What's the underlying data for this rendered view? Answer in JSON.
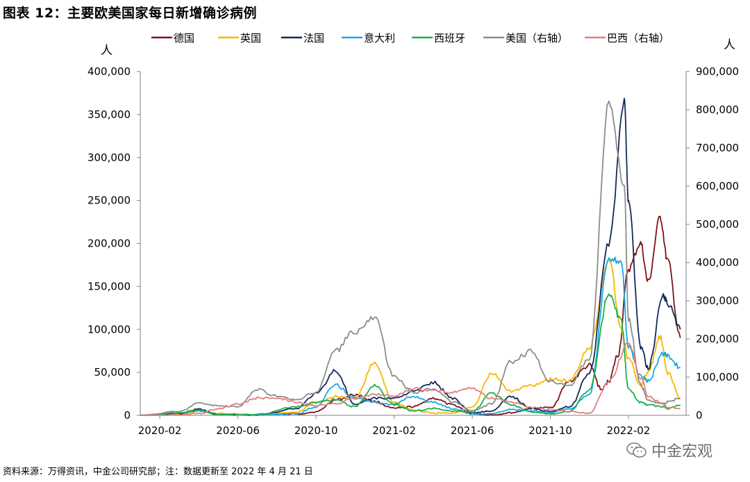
{
  "title": "图表 12：主要欧美国家每日新增确诊病例",
  "source": "资料来源：万得资讯，中金公司研究部；注：数据更新至 2022 年 4 月 21 日",
  "watermark": "中金宏观",
  "chart_data": {
    "type": "line",
    "title": "图表 12：主要欧美国家每日新增确诊病例",
    "left_axis": {
      "label": "人",
      "min": 0,
      "max": 400000,
      "ticks": [
        "0",
        "50,000",
        "100,000",
        "150,000",
        "200,000",
        "250,000",
        "300,000",
        "350,000",
        "400,000"
      ]
    },
    "right_axis": {
      "label": "人",
      "min": 0,
      "max": 900000,
      "ticks": [
        "0",
        "100,000",
        "200,000",
        "300,000",
        "400,000",
        "500,000",
        "600,000",
        "700,000",
        "800,000",
        "900,000"
      ]
    },
    "x_ticks": [
      "2020-02",
      "2020-06",
      "2020-10",
      "2021-02",
      "2021-06",
      "2021-10",
      "2022-02"
    ],
    "x_range": [
      "2020-01",
      "2022-04"
    ],
    "legend_position": "top",
    "series": [
      {
        "name": "德国",
        "axis": "left",
        "color": "#7b1418",
        "points": [
          [
            "2020-01",
            0
          ],
          [
            "2020-03",
            1000
          ],
          [
            "2020-04",
            5000
          ],
          [
            "2020-05",
            1000
          ],
          [
            "2020-07",
            500
          ],
          [
            "2020-09",
            1500
          ],
          [
            "2020-10",
            4000
          ],
          [
            "2020-11",
            18000
          ],
          [
            "2020-12",
            24000
          ],
          [
            "2021-01",
            16000
          ],
          [
            "2021-02",
            8000
          ],
          [
            "2021-03",
            10000
          ],
          [
            "2021-04",
            20000
          ],
          [
            "2021-05",
            12000
          ],
          [
            "2021-06",
            2000
          ],
          [
            "2021-07",
            500
          ],
          [
            "2021-08",
            3000
          ],
          [
            "2021-09",
            8000
          ],
          [
            "2021-10",
            9000
          ],
          [
            "2021-11",
            40000
          ],
          [
            "2021-12",
            58000
          ],
          [
            "2021-12-20",
            30000
          ],
          [
            "2022-01",
            40000
          ],
          [
            "2022-01-15",
            70000
          ],
          [
            "2022-02",
            170000
          ],
          [
            "2022-02-20",
            200000
          ],
          [
            "2022-03",
            155000
          ],
          [
            "2022-03-20",
            230000
          ],
          [
            "2022-04",
            180000
          ],
          [
            "2022-04-21",
            90000
          ]
        ]
      },
      {
        "name": "英国",
        "axis": "left",
        "color": "#f5b800",
        "points": [
          [
            "2020-01",
            0
          ],
          [
            "2020-03",
            1000
          ],
          [
            "2020-04",
            5000
          ],
          [
            "2020-05",
            2000
          ],
          [
            "2020-07",
            600
          ],
          [
            "2020-09",
            3500
          ],
          [
            "2020-10",
            15000
          ],
          [
            "2020-11",
            22000
          ],
          [
            "2020-12",
            20000
          ],
          [
            "2021-01",
            60000
          ],
          [
            "2021-02",
            15000
          ],
          [
            "2021-03",
            6000
          ],
          [
            "2021-04",
            2500
          ],
          [
            "2021-05",
            2500
          ],
          [
            "2021-06",
            10000
          ],
          [
            "2021-07",
            48000
          ],
          [
            "2021-08",
            28000
          ],
          [
            "2021-09",
            35000
          ],
          [
            "2021-10",
            42000
          ],
          [
            "2021-11",
            40000
          ],
          [
            "2021-12",
            80000
          ],
          [
            "2022-01",
            183000
          ],
          [
            "2022-01-20",
            100000
          ],
          [
            "2022-02",
            65000
          ],
          [
            "2022-02-20",
            35000
          ],
          [
            "2022-03",
            50000
          ],
          [
            "2022-03-20",
            90000
          ],
          [
            "2022-04",
            50000
          ],
          [
            "2022-04-21",
            20000
          ]
        ]
      },
      {
        "name": "法国",
        "axis": "left",
        "color": "#14285a",
        "points": [
          [
            "2020-01",
            0
          ],
          [
            "2020-03",
            2000
          ],
          [
            "2020-04",
            7000
          ],
          [
            "2020-05",
            1000
          ],
          [
            "2020-07",
            500
          ],
          [
            "2020-09",
            8000
          ],
          [
            "2020-10",
            25000
          ],
          [
            "2020-11",
            52000
          ],
          [
            "2020-12",
            12000
          ],
          [
            "2021-01",
            20000
          ],
          [
            "2021-02",
            20000
          ],
          [
            "2021-03",
            28000
          ],
          [
            "2021-04",
            38000
          ],
          [
            "2021-05",
            20000
          ],
          [
            "2021-06",
            3000
          ],
          [
            "2021-07",
            5000
          ],
          [
            "2021-08",
            22000
          ],
          [
            "2021-09",
            8000
          ],
          [
            "2021-10",
            5000
          ],
          [
            "2021-11",
            10000
          ],
          [
            "2021-12",
            50000
          ],
          [
            "2022-01",
            200000
          ],
          [
            "2022-01-25",
            365000
          ],
          [
            "2022-02",
            250000
          ],
          [
            "2022-02-20",
            80000
          ],
          [
            "2022-03",
            55000
          ],
          [
            "2022-03-25",
            140000
          ],
          [
            "2022-04",
            130000
          ],
          [
            "2022-04-21",
            100000
          ]
        ]
      },
      {
        "name": "意大利",
        "axis": "left",
        "color": "#1aa7e6",
        "points": [
          [
            "2020-01",
            0
          ],
          [
            "2020-03",
            3000
          ],
          [
            "2020-04",
            5000
          ],
          [
            "2020-05",
            1000
          ],
          [
            "2020-07",
            300
          ],
          [
            "2020-09",
            1500
          ],
          [
            "2020-10",
            10000
          ],
          [
            "2020-11",
            35000
          ],
          [
            "2020-12",
            20000
          ],
          [
            "2021-01",
            15000
          ],
          [
            "2021-02",
            13000
          ],
          [
            "2021-03",
            22000
          ],
          [
            "2021-04",
            15000
          ],
          [
            "2021-05",
            8000
          ],
          [
            "2021-06",
            1500
          ],
          [
            "2021-07",
            2000
          ],
          [
            "2021-08",
            7000
          ],
          [
            "2021-09",
            5000
          ],
          [
            "2021-10",
            3000
          ],
          [
            "2021-11",
            8000
          ],
          [
            "2021-12",
            25000
          ],
          [
            "2022-01",
            180000
          ],
          [
            "2022-01-20",
            180000
          ],
          [
            "2022-02",
            80000
          ],
          [
            "2022-02-20",
            45000
          ],
          [
            "2022-03",
            40000
          ],
          [
            "2022-03-25",
            72000
          ],
          [
            "2022-04",
            70000
          ],
          [
            "2022-04-21",
            55000
          ]
        ]
      },
      {
        "name": "西班牙",
        "axis": "left",
        "color": "#1fae4a",
        "points": [
          [
            "2020-01",
            0
          ],
          [
            "2020-03",
            3000
          ],
          [
            "2020-04",
            6000
          ],
          [
            "2020-05",
            500
          ],
          [
            "2020-07",
            1000
          ],
          [
            "2020-09",
            10000
          ],
          [
            "2020-10",
            15000
          ],
          [
            "2020-11",
            18000
          ],
          [
            "2020-12",
            10000
          ],
          [
            "2021-01",
            35000
          ],
          [
            "2021-02",
            12000
          ],
          [
            "2021-03",
            5000
          ],
          [
            "2021-04",
            8000
          ],
          [
            "2021-05",
            5000
          ],
          [
            "2021-06",
            4000
          ],
          [
            "2021-07",
            26000
          ],
          [
            "2021-08",
            12000
          ],
          [
            "2021-09",
            4000
          ],
          [
            "2021-10",
            2000
          ],
          [
            "2021-11",
            5000
          ],
          [
            "2021-12",
            30000
          ],
          [
            "2022-01",
            140000
          ],
          [
            "2022-01-20",
            110000
          ],
          [
            "2022-02",
            30000
          ],
          [
            "2022-02-20",
            15000
          ],
          [
            "2022-03",
            12000
          ],
          [
            "2022-03-25",
            10000
          ],
          [
            "2022-04",
            8000
          ],
          [
            "2022-04-21",
            12000
          ]
        ]
      },
      {
        "name": "美国（右轴）",
        "axis": "right",
        "color": "#8c8c8c",
        "points": [
          [
            "2020-01",
            0
          ],
          [
            "2020-03",
            10000
          ],
          [
            "2020-04",
            32000
          ],
          [
            "2020-05",
            25000
          ],
          [
            "2020-06",
            22000
          ],
          [
            "2020-07",
            68000
          ],
          [
            "2020-08",
            50000
          ],
          [
            "2020-09",
            40000
          ],
          [
            "2020-10",
            60000
          ],
          [
            "2020-11",
            170000
          ],
          [
            "2020-12",
            220000
          ],
          [
            "2021-01",
            255000
          ],
          [
            "2021-02",
            100000
          ],
          [
            "2021-03",
            60000
          ],
          [
            "2021-04",
            70000
          ],
          [
            "2021-05",
            35000
          ],
          [
            "2021-06",
            12000
          ],
          [
            "2021-07",
            30000
          ],
          [
            "2021-08",
            140000
          ],
          [
            "2021-09",
            165000
          ],
          [
            "2021-10",
            90000
          ],
          [
            "2021-11",
            80000
          ],
          [
            "2021-12",
            150000
          ],
          [
            "2022-01",
            820000
          ],
          [
            "2022-01-25",
            600000
          ],
          [
            "2022-02",
            250000
          ],
          [
            "2022-02-20",
            80000
          ],
          [
            "2022-03",
            40000
          ],
          [
            "2022-03-25",
            30000
          ],
          [
            "2022-04",
            35000
          ],
          [
            "2022-04-21",
            45000
          ]
        ]
      },
      {
        "name": "巴西（右轴）",
        "axis": "right",
        "color": "#e07f82",
        "points": [
          [
            "2020-01",
            0
          ],
          [
            "2020-03",
            1000
          ],
          [
            "2020-04",
            5000
          ],
          [
            "2020-05",
            18000
          ],
          [
            "2020-06",
            30000
          ],
          [
            "2020-07",
            45000
          ],
          [
            "2020-08",
            45000
          ],
          [
            "2020-09",
            35000
          ],
          [
            "2020-10",
            25000
          ],
          [
            "2020-11",
            30000
          ],
          [
            "2020-12",
            45000
          ],
          [
            "2021-01",
            55000
          ],
          [
            "2021-02",
            50000
          ],
          [
            "2021-03",
            70000
          ],
          [
            "2021-04",
            65000
          ],
          [
            "2021-05",
            60000
          ],
          [
            "2021-06",
            70000
          ],
          [
            "2021-07",
            45000
          ],
          [
            "2021-08",
            35000
          ],
          [
            "2021-09",
            20000
          ],
          [
            "2021-10",
            15000
          ],
          [
            "2021-11",
            10000
          ],
          [
            "2021-12",
            5000
          ],
          [
            "2022-01",
            90000
          ],
          [
            "2022-02",
            190000
          ],
          [
            "2022-02-20",
            100000
          ],
          [
            "2022-03",
            50000
          ],
          [
            "2022-03-25",
            30000
          ],
          [
            "2022-04",
            20000
          ],
          [
            "2022-04-21",
            18000
          ]
        ]
      }
    ]
  }
}
